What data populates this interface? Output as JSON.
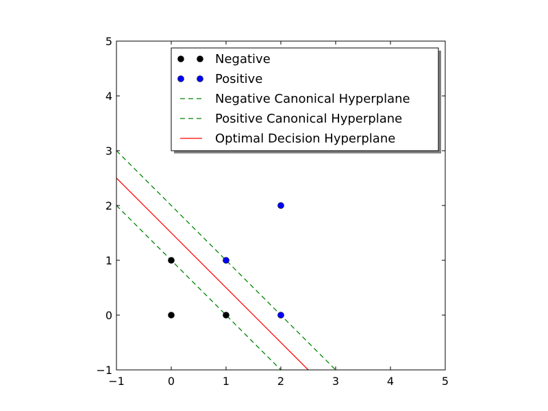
{
  "chart_data": {
    "type": "scatter",
    "title": "",
    "xlabel": "",
    "ylabel": "",
    "xlim": [
      -1,
      5
    ],
    "ylim": [
      -1,
      5
    ],
    "xticks": [
      -1,
      0,
      1,
      2,
      3,
      4,
      5
    ],
    "yticks": [
      -1,
      0,
      1,
      2,
      3,
      4,
      5
    ],
    "grid": false,
    "legend_position": "top-right",
    "series": [
      {
        "name": "Negative",
        "kind": "points",
        "color": "#000000",
        "points": [
          [
            0,
            0
          ],
          [
            0,
            1
          ],
          [
            1,
            0
          ]
        ]
      },
      {
        "name": "Positive",
        "kind": "points",
        "color": "#0000ff",
        "points": [
          [
            1,
            1
          ],
          [
            2,
            0
          ],
          [
            2,
            2
          ]
        ]
      },
      {
        "name": "Negative Canonical Hyperplane",
        "kind": "line",
        "style": "dashed",
        "color": "#008000",
        "points": [
          [
            -1,
            2
          ],
          [
            2,
            -1
          ]
        ]
      },
      {
        "name": "Positive Canonical Hyperplane",
        "kind": "line",
        "style": "dashed",
        "color": "#008000",
        "points": [
          [
            -1,
            3
          ],
          [
            3,
            -1
          ]
        ]
      },
      {
        "name": "Optimal Decision Hyperplane",
        "kind": "line",
        "style": "solid",
        "color": "#ff0000",
        "points": [
          [
            -1,
            2.5
          ],
          [
            2.5,
            -1
          ]
        ]
      }
    ]
  }
}
